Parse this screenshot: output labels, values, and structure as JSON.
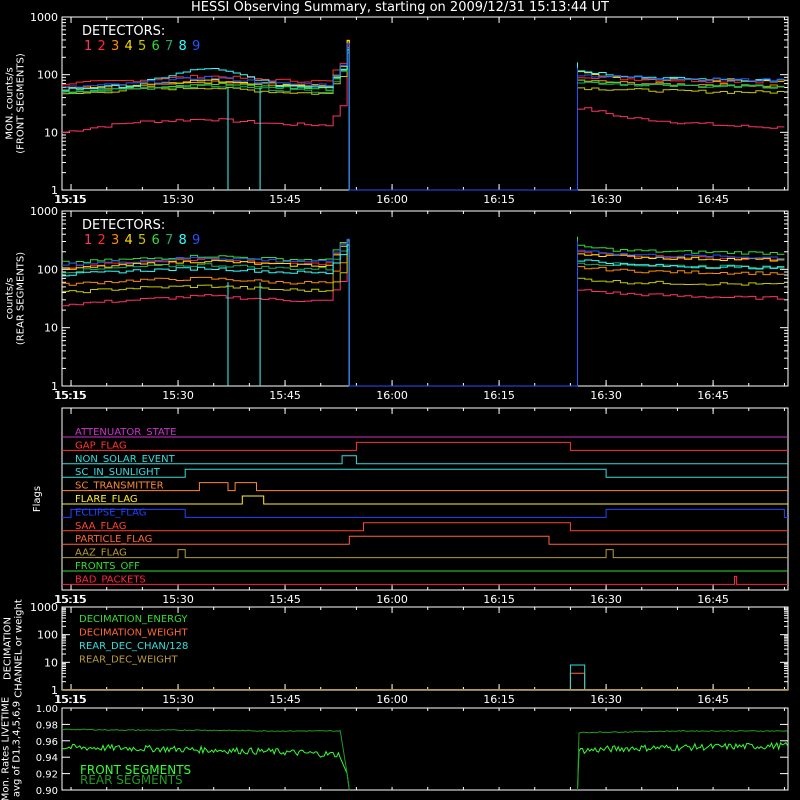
{
  "title": "HESSI Observing Summary, starting on 2009/12/31 15:13:44 UT",
  "colors": {
    "background": "#000000",
    "axis": "#ffffff",
    "det1": "#ff3366",
    "det2": "#ff2a2a",
    "det3": "#ff8c00",
    "det4": "#ffdd00",
    "det5": "#c8c800",
    "det6": "#33dd33",
    "det7": "#22aa66",
    "det8": "#33ffff",
    "det9": "#2255ff"
  },
  "chart_data": [
    {
      "type": "line",
      "panel": "front",
      "ylabel": [
        "MON. counts/s",
        "(FRONT SEGMENTS)"
      ],
      "ylog": true,
      "ylim": [
        1,
        1000
      ],
      "xlim": [
        "15:13:44",
        "16:55:30"
      ],
      "yticks": [
        "1",
        "10",
        "100",
        "1000"
      ],
      "xticks": [
        "15:15",
        "15:30",
        "15:45",
        "16:00",
        "16:15",
        "16:30",
        "16:45"
      ],
      "legend_title": "DETECTORS:",
      "legend_labels": [
        "1",
        "2",
        "3",
        "4",
        "5",
        "6",
        "7",
        "8",
        "9"
      ],
      "gap": [
        "15:54",
        "16:26"
      ],
      "series": [
        {
          "name": "1",
          "values_before": [
            10,
            15,
            17,
            14,
            13
          ],
          "values_after": [
            28,
            18,
            15,
            13,
            12
          ]
        },
        {
          "name": "2",
          "values_before": [
            70,
            80,
            95,
            80,
            75
          ],
          "values_after": [
            95,
            85,
            80,
            78,
            75
          ]
        },
        {
          "name": "3",
          "values_before": [
            55,
            65,
            75,
            65,
            60
          ],
          "values_after": [
            80,
            72,
            68,
            66,
            64
          ]
        },
        {
          "name": "4",
          "values_before": [
            58,
            68,
            80,
            68,
            62
          ],
          "values_after": [
            110,
            90,
            82,
            80,
            78
          ]
        },
        {
          "name": "5",
          "values_before": [
            45,
            55,
            60,
            50,
            45
          ],
          "values_after": [
            60,
            55,
            52,
            50,
            50
          ]
        },
        {
          "name": "6",
          "values_before": [
            50,
            60,
            70,
            60,
            55
          ],
          "values_after": [
            80,
            70,
            66,
            64,
            62
          ]
        },
        {
          "name": "7",
          "values_before": [
            48,
            58,
            65,
            55,
            50
          ],
          "values_after": [
            75,
            68,
            65,
            62,
            60
          ]
        },
        {
          "name": "8",
          "values_before": [
            55,
            65,
            130,
            65,
            60
          ],
          "values_after": [
            120,
            95,
            85,
            82,
            80
          ]
        },
        {
          "name": "9",
          "values_before": [
            60,
            70,
            90,
            70,
            65
          ],
          "values_after": [
            100,
            90,
            85,
            82,
            80
          ]
        }
      ],
      "peak_value": 400
    },
    {
      "type": "line",
      "panel": "rear",
      "ylabel": [
        "counts/s",
        "(REAR SEGMENTS)"
      ],
      "ylog": true,
      "ylim": [
        1,
        1000
      ],
      "xlim": [
        "15:13:44",
        "16:55:30"
      ],
      "yticks": [
        "1",
        "10",
        "100",
        "1000"
      ],
      "xticks": [
        "15:15",
        "15:30",
        "15:45",
        "16:00",
        "16:15",
        "16:30",
        "16:45"
      ],
      "legend_title": "DETECTORS:",
      "legend_labels": [
        "1",
        "2",
        "3",
        "4",
        "5",
        "6",
        "7",
        "8",
        "9"
      ],
      "gap": [
        "15:54",
        "16:26"
      ],
      "series": [
        {
          "name": "1",
          "values_before": [
            25,
            30,
            35,
            30,
            28
          ],
          "values_after": [
            45,
            38,
            35,
            33,
            32
          ]
        },
        {
          "name": "2",
          "values_before": [
            110,
            130,
            150,
            130,
            120
          ],
          "values_after": [
            200,
            170,
            160,
            155,
            150
          ]
        },
        {
          "name": "3",
          "values_before": [
            55,
            65,
            70,
            60,
            58
          ],
          "values_after": [
            110,
            95,
            90,
            88,
            85
          ]
        },
        {
          "name": "4",
          "values_before": [
            100,
            120,
            140,
            120,
            115
          ],
          "values_after": [
            190,
            165,
            155,
            150,
            145
          ]
        },
        {
          "name": "5",
          "values_before": [
            40,
            48,
            52,
            45,
            42
          ],
          "values_after": [
            70,
            60,
            58,
            56,
            55
          ]
        },
        {
          "name": "6",
          "values_before": [
            130,
            150,
            170,
            150,
            140
          ],
          "values_after": [
            250,
            210,
            200,
            195,
            190
          ]
        },
        {
          "name": "7",
          "values_before": [
            90,
            110,
            120,
            105,
            100
          ],
          "values_after": [
            130,
            120,
            115,
            112,
            110
          ]
        },
        {
          "name": "8",
          "values_before": [
            80,
            95,
            105,
            90,
            85
          ],
          "values_after": [
            150,
            120,
            112,
            110,
            105
          ]
        },
        {
          "name": "9",
          "values_before": [
            120,
            140,
            160,
            140,
            130
          ],
          "values_after": [
            220,
            180,
            170,
            165,
            160
          ]
        }
      ],
      "peak_value": 330
    },
    {
      "type": "line",
      "panel": "flags",
      "ylabel": [
        "Flags"
      ],
      "xlim": [
        "15:13:44",
        "16:55:30"
      ],
      "xticks": [
        "15:15",
        "15:30",
        "15:45",
        "16:00",
        "16:15",
        "16:30",
        "16:45"
      ],
      "flags": [
        {
          "name": "ATTENUATOR_STATE",
          "color": "#cc33cc",
          "on": []
        },
        {
          "name": "GAP_FLAG",
          "color": "#ff3333",
          "on": [
            [
              "15:55",
              "16:25"
            ]
          ]
        },
        {
          "name": "NON_SOLAR_EVENT",
          "color": "#33dddd",
          "on": [
            [
              "15:53",
              "15:55"
            ]
          ]
        },
        {
          "name": "SC_IN_SUNLIGHT",
          "color": "#33dddd",
          "on": [
            [
              "15:31",
              "16:30"
            ]
          ]
        },
        {
          "name": "SC_TRANSMITTER",
          "color": "#ff8833",
          "on": [
            [
              "15:33",
              "15:37"
            ],
            [
              "15:38",
              "15:41"
            ]
          ]
        },
        {
          "name": "FLARE_FLAG",
          "color": "#ffee33",
          "on": [
            [
              "15:39",
              "15:42"
            ]
          ]
        },
        {
          "name": "ECLIPSE_FLAG",
          "color": "#2244ff",
          "on": [
            [
              "15:15",
              "15:31"
            ],
            [
              "16:30",
              "16:55"
            ]
          ]
        },
        {
          "name": "SAA_FLAG",
          "color": "#ff4433",
          "on": [
            [
              "15:56",
              "16:25"
            ]
          ]
        },
        {
          "name": "PARTICLE_FLAG",
          "color": "#ff6633",
          "on": [
            [
              "15:54",
              "16:22"
            ]
          ]
        },
        {
          "name": "AAZ_FLAG",
          "color": "#b89c33",
          "on": [
            [
              "15:30",
              "15:31"
            ],
            [
              "16:30",
              "16:31"
            ]
          ]
        },
        {
          "name": "FRONTS_OFF",
          "color": "#33dd33",
          "on": []
        },
        {
          "name": "BAD_PACKETS",
          "color": "#ff2244",
          "on": [
            [
              "16:48",
              "16:48.3"
            ]
          ]
        }
      ]
    },
    {
      "type": "line",
      "panel": "decimation",
      "ylabel": [
        "DECIMATION",
        "CHANNEL or weight"
      ],
      "ylog": true,
      "ylim": [
        1,
        1000
      ],
      "yticks": [
        "1",
        "10",
        "100",
        "1000"
      ],
      "xlim": [
        "15:13:44",
        "16:55:30"
      ],
      "xticks": [
        "15:15",
        "15:30",
        "15:45",
        "16:00",
        "16:15",
        "16:30",
        "16:45"
      ],
      "series": [
        {
          "name": "DECIMATION_ENERGY",
          "color": "#33dd33",
          "value": 1
        },
        {
          "name": "DECIMATION_WEIGHT",
          "color": "#ff6633",
          "value": 1,
          "spike": [
            [
              "16:25",
              "16:27"
            ],
            4
          ]
        },
        {
          "name": "REAR_DEC_CHAN/128",
          "color": "#33dddd",
          "value": 1,
          "spike": [
            [
              "16:25",
              "16:27"
            ],
            8
          ]
        },
        {
          "name": "REAR_DEC_WEIGHT",
          "color": "#b89c33",
          "value": 1
        }
      ]
    },
    {
      "type": "line",
      "panel": "livetime",
      "ylabel": [
        "Mon. Rates LIVETIME",
        "avg of D1,3,4,5,6,9"
      ],
      "ylim": [
        0.9,
        1.0
      ],
      "yticks": [
        "0.90",
        "0.92",
        "0.94",
        "0.96",
        "0.98",
        "1.00"
      ],
      "xlim": [
        "15:13:44",
        "16:55:30"
      ],
      "series": [
        {
          "name": "FRONT SEGMENTS",
          "color": "#33ff33",
          "values_before": [
            0.952,
            0.951,
            0.949,
            0.947,
            0.943
          ],
          "values_after": [
            0.948,
            0.951,
            0.952,
            0.953,
            0.954
          ]
        },
        {
          "name": "REAR SEGMENTS",
          "color": "#229922",
          "values_before": [
            0.974,
            0.973,
            0.973,
            0.972,
            0.972
          ],
          "values_after": [
            0.97,
            0.971,
            0.972,
            0.972,
            0.972
          ]
        }
      ]
    }
  ]
}
